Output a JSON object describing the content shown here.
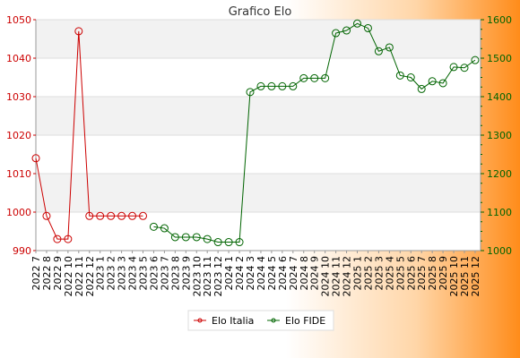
{
  "chart_data": {
    "type": "line",
    "title": "Grafico Elo",
    "x": [
      "2022 7",
      "2022 8",
      "2022 9",
      "2022 10",
      "2022 11",
      "2022 12",
      "2023 1",
      "2023 2",
      "2023 3",
      "2023 4",
      "2023 5",
      "2023 6",
      "2023 7",
      "2023 8",
      "2023 9",
      "2023 10",
      "2023 11",
      "2023 12",
      "2024 1",
      "2024 2",
      "2024 3",
      "2024 4",
      "2024 5",
      "2024 6",
      "2024 7",
      "2024 8",
      "2024 9",
      "2024 10",
      "2024 11",
      "2024 12",
      "2025 1",
      "2025 2",
      "2025 3",
      "2025 4",
      "2025 5",
      "2025 6",
      "2025 7",
      "2025 8",
      "2025 9",
      "2025 10",
      "2025 11",
      "2025 12"
    ],
    "ylim_left": [
      990,
      1050
    ],
    "yticks_left": [
      990,
      1000,
      1010,
      1020,
      1030,
      1040,
      1050
    ],
    "ylim_right": [
      1000,
      1600
    ],
    "yticks_right": [
      1000,
      1100,
      1200,
      1300,
      1400,
      1500,
      1600
    ],
    "grid": true,
    "legend_position": "bottom",
    "series": [
      {
        "name": "Elo Italia",
        "axis": "left",
        "color": "#cc0000",
        "values": [
          1014,
          999,
          993,
          993,
          1047,
          999,
          999,
          999,
          999,
          999,
          999,
          null,
          null,
          null,
          null,
          null,
          null,
          null,
          null,
          null,
          null,
          null,
          null,
          null,
          null,
          null,
          null,
          null,
          null,
          null,
          null,
          null,
          null,
          null,
          null,
          null,
          null,
          null,
          null,
          null,
          null,
          null
        ]
      },
      {
        "name": "Elo FIDE",
        "axis": "right",
        "color": "#006400",
        "values": [
          null,
          null,
          null,
          null,
          null,
          null,
          null,
          null,
          null,
          null,
          null,
          1062,
          1058,
          1035,
          1035,
          1035,
          1030,
          1022,
          1022,
          1022,
          1412,
          1427,
          1427,
          1427,
          1427,
          1448,
          1448,
          1448,
          1565,
          1572,
          1590,
          1578,
          1518,
          1528,
          1455,
          1450,
          1420,
          1440,
          1435,
          1477,
          1475,
          1495
        ]
      }
    ]
  }
}
